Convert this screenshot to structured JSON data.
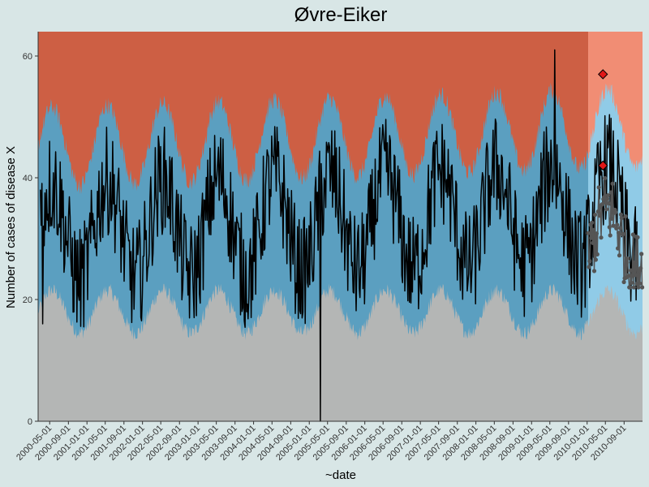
{
  "chart_data": {
    "type": "area",
    "title": "Øvre-Eiker",
    "xlabel": "~date",
    "ylabel": "Number of cases of disease X",
    "ylim": [
      0,
      64
    ],
    "xlim": [
      "2000-02-15",
      "2010-12-31"
    ],
    "y_ticks": [
      0,
      20,
      40,
      60
    ],
    "x_ticks": [
      "2000-05-01",
      "2000-09-01",
      "2001-01-01",
      "2001-05-01",
      "2001-09-01",
      "2002-01-01",
      "2002-05-01",
      "2002-09-01",
      "2003-01-01",
      "2003-05-01",
      "2003-09-01",
      "2004-01-01",
      "2004-05-01",
      "2004-09-01",
      "2005-01-01",
      "2005-05-01",
      "2005-09-01",
      "2006-01-01",
      "2006-05-01",
      "2006-09-01",
      "2007-01-01",
      "2007-05-01",
      "2007-09-01",
      "2008-01-01",
      "2008-05-01",
      "2008-09-01",
      "2009-01-01",
      "2009-05-01",
      "2009-09-01",
      "2010-01-01",
      "2010-05-01",
      "2010-09-01"
    ],
    "grid": false,
    "legend": "none",
    "baseline_period": {
      "start": "2000-02-15",
      "end": "2010-01-08"
    },
    "prediction_period": {
      "start": "2010-01-08",
      "end": "2010-12-31"
    },
    "zones": [
      {
        "name": "low",
        "color_baseline": "#b4b6b5",
        "color_prediction": "#b4b6b5"
      },
      {
        "name": "expected",
        "color_baseline": "#5b9fc0",
        "color_prediction": "#90cbe7"
      },
      {
        "name": "high",
        "color_baseline": "#cd5f44",
        "color_prediction": "#f18d74"
      }
    ],
    "threshold_curves": {
      "lower": {
        "mean": 18,
        "amplitude": 3.5,
        "peak_month": 4.5
      },
      "upper": {
        "mean": 45,
        "amplitude": 6.5,
        "peak_month": 4.5,
        "trend_per_year": 0.3
      }
    },
    "series": [
      {
        "name": "observed",
        "color": "#000000",
        "type": "line"
      },
      {
        "name": "prediction",
        "color": "#555555",
        "type": "line+points"
      }
    ],
    "alerts": [
      {
        "x": "2010-04-15",
        "y": 42
      },
      {
        "x": "2010-04-15",
        "y": 57
      }
    ],
    "alert_color": "#e01818",
    "noted_points": [
      {
        "x": "2005-03-15",
        "y": 0
      },
      {
        "x": "2009-06-01",
        "y": 61
      },
      {
        "x": "2000-03-15",
        "y": 16
      }
    ]
  }
}
